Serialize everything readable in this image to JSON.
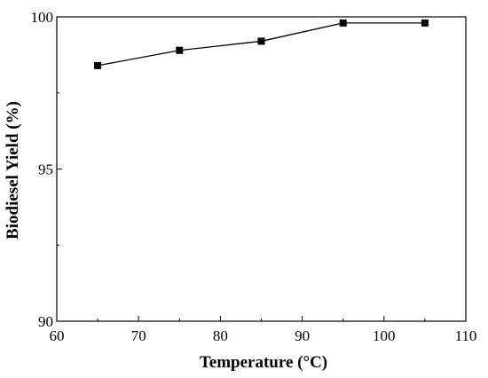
{
  "chart_data": {
    "type": "line",
    "title": "",
    "xlabel": "Temperature (°C)",
    "ylabel": "Biodiesel Yield  (%)",
    "xlim": [
      60,
      110
    ],
    "ylim": [
      90,
      100
    ],
    "x_ticks": [
      60,
      70,
      80,
      90,
      100,
      110
    ],
    "y_ticks_labeled": [
      90,
      95,
      100
    ],
    "y_minor_ticks": [
      92.5,
      97.5
    ],
    "grid": false,
    "legend": "none",
    "marker": "square",
    "color": "#000000",
    "series": [
      {
        "x": [
          65,
          75,
          85,
          95,
          105
        ],
        "values": [
          98.4,
          98.9,
          99.2,
          99.8,
          99.8
        ]
      }
    ]
  }
}
